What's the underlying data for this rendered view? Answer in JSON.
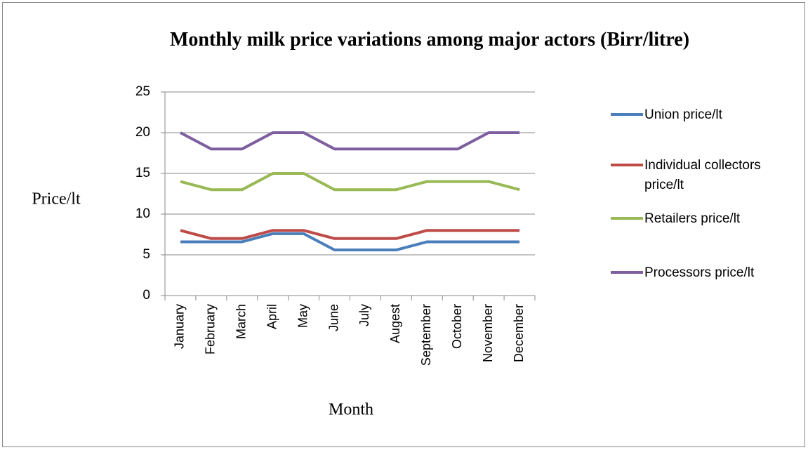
{
  "chart_data": {
    "type": "line",
    "title": "Monthly milk price variations among major actors (Birr/litre)",
    "x_label": "Month",
    "y_label": "Price/lt",
    "categories": [
      "January",
      "February",
      "March",
      "April",
      "May",
      "June",
      "July",
      "Augest",
      "September",
      "October",
      "November",
      "December"
    ],
    "series": [
      {
        "name": "Union price/lt",
        "color": "#4a7ebb",
        "values": [
          6.6,
          6.6,
          6.6,
          7.6,
          7.6,
          5.6,
          5.6,
          5.6,
          6.6,
          6.6,
          6.6,
          6.6
        ]
      },
      {
        "name": "Individual collectors price/lt",
        "color": "#be4b48",
        "values": [
          8,
          7,
          7,
          8,
          8,
          7,
          7,
          7,
          8,
          8,
          8,
          8
        ]
      },
      {
        "name": "Retailers price/lt",
        "color": "#98b954",
        "values": [
          14,
          13,
          13,
          15,
          15,
          13,
          13,
          13,
          14,
          14,
          14,
          13
        ]
      },
      {
        "name": "Processors price/lt",
        "color": "#7d5fa0",
        "values": [
          20,
          18,
          18,
          20,
          20,
          18,
          18,
          18,
          18,
          18,
          20,
          20
        ]
      }
    ],
    "ylim": [
      0,
      25
    ],
    "yticks": [
      0,
      5,
      10,
      15,
      20,
      25
    ],
    "grid": true,
    "legend": "right"
  }
}
